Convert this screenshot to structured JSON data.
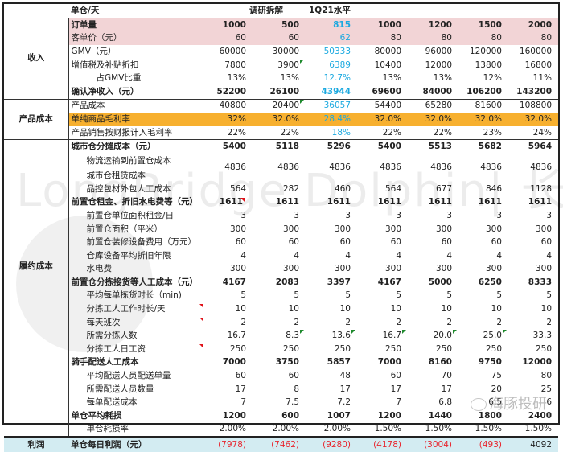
{
  "header": {
    "unit_label": "单仓/天",
    "group1_label": "调研拆解",
    "group2_label": "1Q21水平"
  },
  "sections": {
    "revenue": "收入",
    "product_cost": "产品成本",
    "fulfillment_cost": "履约成本",
    "profit": "利润"
  },
  "rows": [
    {
      "label": "订单量",
      "values": [
        "1000",
        "500",
        "815",
        "1000",
        "1200",
        "1500",
        "2000"
      ]
    },
    {
      "label": "客单价（元）",
      "values": [
        "60",
        "60",
        "62",
        "80",
        "80",
        "80",
        "80"
      ]
    },
    {
      "label": "GMV（元）",
      "values": [
        "60000",
        "30000",
        "50333",
        "80000",
        "96000",
        "120000",
        "160000"
      ]
    },
    {
      "label": "增值税及补贴折扣",
      "values": [
        "7800",
        "3900",
        "6389",
        "10400",
        "12000",
        "13800",
        "16800"
      ]
    },
    {
      "label": "占GMV比重",
      "values": [
        "13%",
        "13%",
        "12.7%",
        "13%",
        "13%",
        "12%",
        "11%"
      ]
    },
    {
      "label": "确认净收入（元）",
      "values": [
        "52200",
        "26100",
        "43944",
        "69600",
        "84000",
        "106200",
        "143200"
      ]
    },
    {
      "label": "产品成本",
      "values": [
        "40800",
        "20400",
        "36057",
        "54400",
        "65280",
        "81600",
        "108800"
      ]
    },
    {
      "label": "单纯商品毛利率",
      "values": [
        "32%",
        "32.0%",
        "28.4%",
        "32.0%",
        "32.0%",
        "32.0%",
        "32.0%"
      ]
    },
    {
      "label": "产品销售按财报计入毛利率",
      "values": [
        "22%",
        "22%",
        "18%",
        "22%",
        "22%",
        "23%",
        "24%"
      ]
    },
    {
      "label": "城市仓分摊成本（元）",
      "values": [
        "5400",
        "5118",
        "5296",
        "5400",
        "5513",
        "5682",
        "5964"
      ]
    },
    {
      "label": "物流运输到前置仓成本",
      "label2": "城市仓租赁成本",
      "values": [
        "4836",
        "4836",
        "4836",
        "4836",
        "4836",
        "4836",
        "4836"
      ]
    },
    {
      "label": "品控包材外包人工成本",
      "values": [
        "564",
        "282",
        "460",
        "564",
        "677",
        "846",
        "1128"
      ]
    },
    {
      "label": "前置仓租金、折旧水电费等（元）",
      "values": [
        "1611",
        "1611",
        "1611",
        "1611",
        "1611",
        "1611",
        "1611"
      ]
    },
    {
      "label": "前置仓单位面积租金/日",
      "values": [
        "3",
        "3",
        "3",
        "3",
        "3",
        "3",
        "3"
      ]
    },
    {
      "label": "前置仓面积（平米）",
      "values": [
        "300",
        "300",
        "300",
        "300",
        "300",
        "300",
        "300"
      ]
    },
    {
      "label": "前置仓装修设备费用（万元）",
      "values": [
        "60",
        "60",
        "60",
        "60",
        "60",
        "60",
        "60"
      ]
    },
    {
      "label": "仓库设备平均折旧年限",
      "values": [
        "4",
        "4",
        "4",
        "4",
        "4",
        "4",
        "4"
      ]
    },
    {
      "label": "水电费",
      "values": [
        "300",
        "300",
        "300",
        "300",
        "300",
        "300",
        "300"
      ]
    },
    {
      "label": "前置仓分拣接货等人工成本（元）",
      "values": [
        "4167",
        "2083",
        "3397",
        "4167",
        "5000",
        "6250",
        "8333"
      ]
    },
    {
      "label": "平均每单拣货时长（min)",
      "values": [
        "5",
        "5",
        "5",
        "5",
        "5",
        "5",
        "5"
      ]
    },
    {
      "label": "分拣工人工作时长/天",
      "values": [
        "10",
        "10",
        "10",
        "10",
        "10",
        "10",
        "10"
      ]
    },
    {
      "label": "每天班次",
      "values": [
        "2",
        "2",
        "2",
        "2",
        "2",
        "2",
        "2"
      ]
    },
    {
      "label": "所需分拣人数",
      "values": [
        "16.7",
        "8.3",
        "13.6",
        "16.7",
        "20.0",
        "25.0",
        "33.3"
      ]
    },
    {
      "label": "分拣工人日工资",
      "values": [
        "250",
        "250",
        "250",
        "250",
        "250",
        "250",
        "250"
      ]
    },
    {
      "label": "骑手配送人工成本",
      "values": [
        "7000",
        "3750",
        "5857",
        "7000",
        "8160",
        "9750",
        "12000"
      ]
    },
    {
      "label": "平均配送人员配送单量",
      "values": [
        "60",
        "60",
        "48",
        "60",
        "70",
        "75",
        "80"
      ]
    },
    {
      "label": "所需配送人员数量",
      "values": [
        "17",
        "8",
        "17",
        "17",
        "17",
        "20",
        "25"
      ]
    },
    {
      "label": "每单配送成本",
      "values": [
        "7",
        "7.5",
        "7.2",
        "7",
        "6.8",
        "6.5",
        "6"
      ]
    },
    {
      "label": "单仓平均耗损",
      "values": [
        "1200",
        "600",
        "1007",
        "1200",
        "1440",
        "1800",
        "2400"
      ]
    },
    {
      "label": "单仓耗损率",
      "values": [
        "2.00%",
        "2.00%",
        "2.00%",
        "1.50%",
        "1.50%",
        "1.50%",
        "1.50%"
      ]
    },
    {
      "label": "单仓每日利润（元）",
      "values": [
        "(7978)",
        "(7462)",
        "(9280)",
        "(4178)",
        "(3004)",
        "(493)",
        "4092"
      ]
    }
  ],
  "colors": {
    "pink_row": "#f2d4d6",
    "orange_row": "#f7b02f",
    "profit_row": "#d3ecf2",
    "highlight_blue": "#1aa9e0",
    "negative_red": "#e8262f",
    "comment_red": "#e0121a",
    "comment_green": "#1f8a2e"
  },
  "watermark": {
    "text": "LongBridge Dolphin| 长桥海豚投研",
    "wechat": "海豚投研"
  }
}
